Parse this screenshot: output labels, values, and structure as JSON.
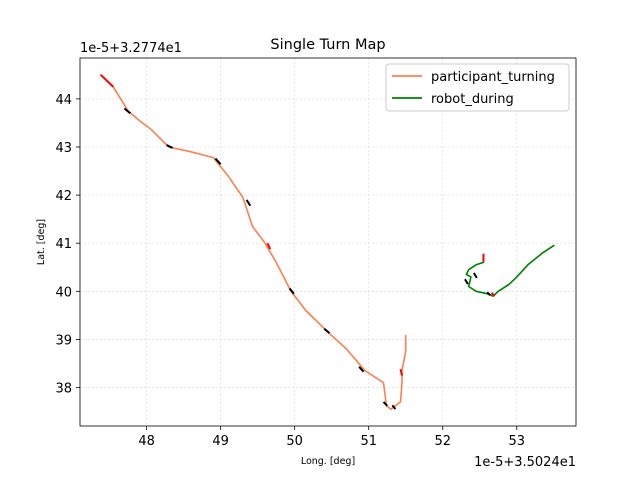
{
  "chart_data": {
    "type": "line",
    "title": "Single Turn Map",
    "xlabel": "Long. [deg]",
    "ylabel": "Lat. [deg]",
    "x_offset_label": "1e-5+3.5024e1",
    "y_offset_label": "1e-5+3.2774e1",
    "xlim": [
      47.1,
      53.8
    ],
    "ylim": [
      37.2,
      44.85
    ],
    "x_ticks": [
      "48",
      "49",
      "50",
      "51",
      "52",
      "53"
    ],
    "y_ticks": [
      "38",
      "39",
      "40",
      "41",
      "42",
      "43",
      "44"
    ],
    "grid": true,
    "legend_position": "upper right",
    "series": [
      {
        "name": "participant_turning",
        "color": "#ff7f50",
        "x": [
          47.38,
          47.55,
          47.75,
          47.9,
          48.05,
          48.3,
          48.6,
          48.9,
          49.1,
          49.3,
          49.43,
          49.6,
          49.75,
          49.95,
          50.15,
          50.45,
          50.7,
          50.95,
          51.2,
          51.24,
          51.3,
          51.43,
          51.45,
          51.45,
          51.5,
          51.5
        ],
        "y": [
          44.5,
          44.25,
          43.75,
          43.55,
          43.38,
          43.0,
          42.9,
          42.78,
          42.4,
          41.95,
          41.35,
          41.0,
          40.6,
          40.0,
          39.6,
          39.15,
          38.8,
          38.35,
          38.1,
          37.62,
          37.55,
          37.7,
          38.1,
          38.35,
          38.75,
          39.08
        ]
      },
      {
        "name": "robot_during",
        "color": "#008000",
        "x": [
          52.55,
          52.55,
          52.45,
          52.35,
          52.32,
          52.38,
          52.35,
          52.45,
          52.6,
          52.68,
          52.75,
          52.9,
          53.0,
          53.15,
          53.35,
          53.5
        ],
        "y": [
          40.75,
          40.6,
          40.55,
          40.45,
          40.35,
          40.3,
          40.1,
          40.0,
          39.95,
          39.9,
          40.0,
          40.15,
          40.3,
          40.55,
          40.8,
          40.95
        ]
      }
    ],
    "markers": {
      "red": [
        {
          "x": [
            47.38,
            47.55
          ],
          "y": [
            44.5,
            44.25
          ]
        },
        {
          "x": [
            49.63,
            49.67
          ],
          "y": [
            41.0,
            40.88
          ]
        },
        {
          "x": [
            51.43,
            51.45
          ],
          "y": [
            38.38,
            38.25
          ]
        },
        {
          "x": [
            52.55,
            52.55
          ],
          "y": [
            40.78,
            40.62
          ]
        },
        {
          "x": [
            52.66,
            52.7
          ],
          "y": [
            39.97,
            39.9
          ]
        }
      ],
      "black": [
        {
          "x": [
            47.7,
            47.78
          ],
          "y": [
            43.8,
            43.7
          ]
        },
        {
          "x": [
            48.27,
            48.35
          ],
          "y": [
            43.04,
            42.98
          ]
        },
        {
          "x": [
            48.93,
            49.0
          ],
          "y": [
            42.76,
            42.64
          ]
        },
        {
          "x": [
            49.35,
            49.4
          ],
          "y": [
            41.9,
            41.78
          ]
        },
        {
          "x": [
            49.93,
            49.99
          ],
          "y": [
            40.06,
            39.95
          ]
        },
        {
          "x": [
            50.4,
            50.47
          ],
          "y": [
            39.22,
            39.13
          ]
        },
        {
          "x": [
            50.87,
            50.93
          ],
          "y": [
            38.43,
            38.33
          ]
        },
        {
          "x": [
            51.2,
            51.25
          ],
          "y": [
            37.7,
            37.62
          ]
        },
        {
          "x": [
            51.32,
            51.36
          ],
          "y": [
            37.63,
            37.55
          ]
        },
        {
          "x": [
            52.42,
            52.46
          ],
          "y": [
            40.38,
            40.28
          ]
        },
        {
          "x": [
            52.3,
            52.34
          ],
          "y": [
            40.25,
            40.15
          ]
        },
        {
          "x": [
            52.6,
            52.64
          ],
          "y": [
            39.98,
            39.92
          ]
        }
      ]
    }
  }
}
